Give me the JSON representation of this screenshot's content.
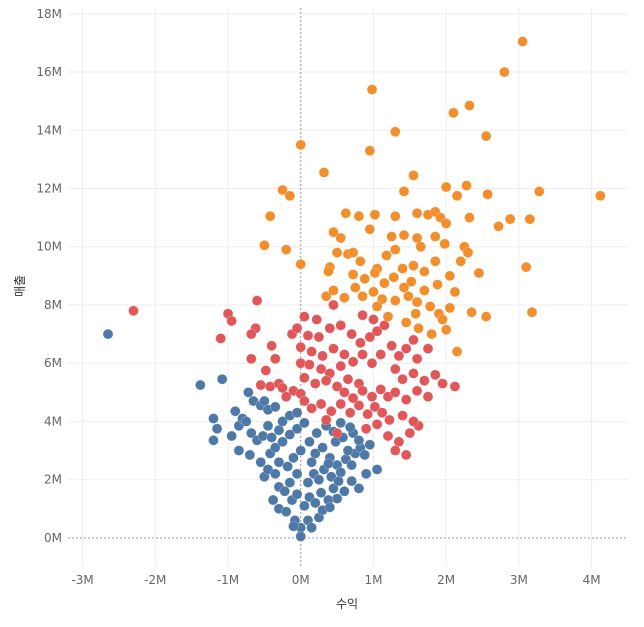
{
  "chart_data": {
    "type": "scatter",
    "title": "",
    "xlabel": "수익",
    "ylabel": "매출",
    "xlim": [
      -3.2,
      4.5
    ],
    "ylim": [
      -1,
      18.2
    ],
    "x_ticks": [
      -3,
      -2,
      -1,
      0,
      1,
      2,
      3,
      4
    ],
    "x_tick_labels": [
      "-3M",
      "-2M",
      "-1M",
      "0M",
      "1M",
      "2M",
      "3M",
      "4M"
    ],
    "y_ticks": [
      0,
      2,
      4,
      6,
      8,
      10,
      12,
      14,
      16,
      18
    ],
    "y_tick_labels": [
      "0M",
      "2M",
      "4M",
      "6M",
      "8M",
      "10M",
      "12M",
      "14M",
      "16M",
      "18M"
    ],
    "units": "millions",
    "grid": true,
    "zero_lines": true,
    "legend": "none",
    "series": [
      {
        "name": "blue",
        "color": "#4e79a7",
        "points": [
          [
            -2.65,
            7.0
          ],
          [
            -1.38,
            5.25
          ],
          [
            -1.08,
            5.45
          ],
          [
            -1.2,
            4.1
          ],
          [
            -1.15,
            3.75
          ],
          [
            -1.2,
            3.35
          ],
          [
            -0.9,
            4.35
          ],
          [
            -0.95,
            3.5
          ],
          [
            -0.85,
            3.85
          ],
          [
            -0.8,
            4.1
          ],
          [
            -0.72,
            5.0
          ],
          [
            -0.75,
            4.0
          ],
          [
            -0.65,
            4.7
          ],
          [
            -0.55,
            4.55
          ],
          [
            -0.5,
            4.7
          ],
          [
            -0.45,
            4.4
          ],
          [
            -0.35,
            4.5
          ],
          [
            -0.68,
            3.6
          ],
          [
            -0.6,
            3.35
          ],
          [
            -0.52,
            3.5
          ],
          [
            -0.45,
            3.85
          ],
          [
            -0.4,
            3.45
          ],
          [
            -0.3,
            3.7
          ],
          [
            -0.25,
            4.0
          ],
          [
            -0.15,
            4.2
          ],
          [
            -0.05,
            4.3
          ],
          [
            -0.85,
            3.0
          ],
          [
            -0.7,
            2.85
          ],
          [
            -0.55,
            2.6
          ],
          [
            -0.42,
            2.9
          ],
          [
            -0.35,
            3.1
          ],
          [
            -0.25,
            3.3
          ],
          [
            -0.15,
            3.55
          ],
          [
            -0.05,
            3.75
          ],
          [
            0.05,
            3.95
          ],
          [
            -0.5,
            2.1
          ],
          [
            -0.45,
            2.35
          ],
          [
            -0.35,
            2.2
          ],
          [
            -0.3,
            2.6
          ],
          [
            -0.18,
            2.45
          ],
          [
            -0.1,
            2.75
          ],
          [
            0.0,
            3.0
          ],
          [
            -0.38,
            1.3
          ],
          [
            -0.3,
            1.75
          ],
          [
            -0.22,
            1.6
          ],
          [
            -0.15,
            1.9
          ],
          [
            -0.05,
            2.2
          ],
          [
            -0.3,
            1.0
          ],
          [
            -0.2,
            0.9
          ],
          [
            -0.12,
            1.3
          ],
          [
            -0.05,
            1.5
          ],
          [
            -0.08,
            0.6
          ],
          [
            0.0,
            0.35
          ],
          [
            0.0,
            0.05
          ],
          [
            -0.1,
            0.4
          ],
          [
            0.1,
            0.6
          ],
          [
            0.15,
            0.35
          ],
          [
            0.25,
            0.7
          ],
          [
            0.3,
            0.95
          ],
          [
            0.05,
            1.1
          ],
          [
            0.12,
            1.4
          ],
          [
            0.2,
            1.2
          ],
          [
            0.28,
            1.55
          ],
          [
            0.38,
            1.3
          ],
          [
            0.45,
            1.7
          ],
          [
            0.1,
            1.9
          ],
          [
            0.18,
            2.2
          ],
          [
            0.25,
            2.0
          ],
          [
            0.32,
            2.35
          ],
          [
            0.42,
            2.1
          ],
          [
            0.5,
            2.5
          ],
          [
            0.55,
            2.25
          ],
          [
            0.62,
            2.7
          ],
          [
            0.7,
            2.5
          ],
          [
            0.75,
            2.9
          ],
          [
            0.82,
            3.1
          ],
          [
            0.88,
            2.85
          ],
          [
            0.95,
            3.2
          ],
          [
            0.2,
            2.9
          ],
          [
            0.3,
            3.1
          ],
          [
            0.4,
            2.75
          ],
          [
            0.48,
            3.3
          ],
          [
            0.58,
            3.45
          ],
          [
            0.65,
            3.0
          ],
          [
            0.72,
            3.6
          ],
          [
            0.8,
            3.35
          ],
          [
            0.12,
            3.3
          ],
          [
            0.22,
            3.6
          ],
          [
            0.35,
            3.85
          ],
          [
            0.45,
            3.65
          ],
          [
            0.55,
            3.95
          ],
          [
            0.68,
            3.8
          ],
          [
            0.15,
            2.6
          ],
          [
            0.38,
            2.55
          ],
          [
            0.52,
            1.95
          ],
          [
            0.6,
            1.6
          ],
          [
            0.7,
            1.95
          ],
          [
            0.8,
            1.7
          ],
          [
            0.9,
            2.2
          ],
          [
            1.05,
            2.35
          ],
          [
            0.4,
            1.05
          ],
          [
            0.5,
            1.35
          ]
        ]
      },
      {
        "name": "red",
        "color": "#e15759",
        "points": [
          [
            -2.3,
            7.8
          ],
          [
            -1.0,
            7.7
          ],
          [
            -0.95,
            7.45
          ],
          [
            -1.1,
            6.85
          ],
          [
            -0.6,
            8.15
          ],
          [
            -0.62,
            7.2
          ],
          [
            -0.68,
            7.0
          ],
          [
            -0.4,
            6.6
          ],
          [
            -0.68,
            6.15
          ],
          [
            -0.35,
            6.15
          ],
          [
            -0.48,
            5.75
          ],
          [
            -0.55,
            5.25
          ],
          [
            -0.42,
            5.2
          ],
          [
            -0.3,
            5.3
          ],
          [
            -0.25,
            5.15
          ],
          [
            -0.1,
            5.05
          ],
          [
            -0.2,
            4.85
          ],
          [
            0.0,
            4.95
          ],
          [
            0.05,
            7.6
          ],
          [
            0.22,
            7.5
          ],
          [
            -0.12,
            7.0
          ],
          [
            -0.05,
            7.2
          ],
          [
            0.1,
            6.95
          ],
          [
            0.25,
            6.9
          ],
          [
            0.4,
            7.2
          ],
          [
            0.0,
            6.55
          ],
          [
            0.15,
            6.4
          ],
          [
            0.3,
            6.25
          ],
          [
            0.45,
            6.5
          ],
          [
            0.0,
            6.0
          ],
          [
            0.12,
            5.95
          ],
          [
            0.28,
            5.8
          ],
          [
            0.4,
            5.65
          ],
          [
            0.55,
            5.9
          ],
          [
            0.05,
            5.5
          ],
          [
            0.2,
            5.3
          ],
          [
            0.35,
            5.4
          ],
          [
            0.5,
            5.2
          ],
          [
            0.65,
            5.45
          ],
          [
            0.8,
            5.3
          ],
          [
            0.05,
            4.7
          ],
          [
            0.15,
            4.45
          ],
          [
            0.28,
            4.6
          ],
          [
            0.42,
            4.35
          ],
          [
            0.55,
            4.6
          ],
          [
            0.68,
            4.3
          ],
          [
            0.8,
            4.55
          ],
          [
            0.92,
            4.25
          ],
          [
            1.02,
            4.5
          ],
          [
            1.12,
            4.3
          ],
          [
            0.55,
            7.3
          ],
          [
            0.7,
            7.0
          ],
          [
            0.82,
            6.7
          ],
          [
            0.95,
            6.9
          ],
          [
            1.05,
            7.1
          ],
          [
            0.6,
            6.3
          ],
          [
            0.72,
            6.05
          ],
          [
            0.85,
            6.3
          ],
          [
            0.98,
            6.0
          ],
          [
            1.1,
            6.3
          ],
          [
            0.6,
            5.0
          ],
          [
            0.72,
            4.8
          ],
          [
            0.85,
            5.05
          ],
          [
            0.98,
            4.85
          ],
          [
            1.1,
            5.1
          ],
          [
            1.2,
            4.85
          ],
          [
            1.25,
            6.6
          ],
          [
            1.35,
            6.25
          ],
          [
            1.45,
            6.5
          ],
          [
            1.55,
            6.8
          ],
          [
            1.6,
            6.15
          ],
          [
            1.75,
            6.5
          ],
          [
            1.3,
            5.8
          ],
          [
            1.4,
            5.45
          ],
          [
            1.55,
            5.65
          ],
          [
            1.7,
            5.4
          ],
          [
            1.85,
            5.6
          ],
          [
            1.95,
            5.3
          ],
          [
            2.12,
            5.2
          ],
          [
            1.3,
            5.0
          ],
          [
            1.45,
            4.75
          ],
          [
            1.6,
            5.05
          ],
          [
            1.75,
            4.85
          ],
          [
            0.45,
            8.0
          ],
          [
            0.85,
            7.65
          ],
          [
            1.0,
            7.5
          ],
          [
            1.15,
            7.3
          ],
          [
            1.2,
            3.5
          ],
          [
            1.35,
            3.3
          ],
          [
            1.5,
            3.6
          ],
          [
            1.62,
            3.85
          ],
          [
            1.3,
            3.0
          ],
          [
            1.45,
            2.85
          ],
          [
            1.05,
            3.9
          ],
          [
            0.9,
            3.75
          ],
          [
            1.22,
            4.05
          ],
          [
            1.4,
            4.2
          ],
          [
            1.55,
            4.0
          ],
          [
            0.5,
            3.6
          ],
          [
            0.35,
            4.05
          ]
        ]
      },
      {
        "name": "orange",
        "color": "#f28e2b",
        "points": [
          [
            3.05,
            17.05
          ],
          [
            2.8,
            16.0
          ],
          [
            0.98,
            15.4
          ],
          [
            2.32,
            14.85
          ],
          [
            2.1,
            14.6
          ],
          [
            2.55,
            13.8
          ],
          [
            1.3,
            13.95
          ],
          [
            0.0,
            13.5
          ],
          [
            0.95,
            13.3
          ],
          [
            0.32,
            12.55
          ],
          [
            1.55,
            12.45
          ],
          [
            -0.25,
            11.95
          ],
          [
            -0.15,
            11.75
          ],
          [
            2.28,
            12.1
          ],
          [
            2.0,
            12.05
          ],
          [
            1.42,
            11.9
          ],
          [
            2.15,
            11.75
          ],
          [
            2.57,
            11.8
          ],
          [
            3.28,
            11.9
          ],
          [
            4.12,
            11.75
          ],
          [
            -0.42,
            11.05
          ],
          [
            0.62,
            11.15
          ],
          [
            0.8,
            11.05
          ],
          [
            1.02,
            11.1
          ],
          [
            1.3,
            11.05
          ],
          [
            1.6,
            11.15
          ],
          [
            1.75,
            11.1
          ],
          [
            1.85,
            11.2
          ],
          [
            1.92,
            11.0
          ],
          [
            2.0,
            10.8
          ],
          [
            2.32,
            11.0
          ],
          [
            2.72,
            10.7
          ],
          [
            2.88,
            10.95
          ],
          [
            3.15,
            10.95
          ],
          [
            -0.5,
            10.05
          ],
          [
            -0.2,
            9.9
          ],
          [
            0.45,
            10.5
          ],
          [
            0.55,
            10.3
          ],
          [
            0.95,
            10.6
          ],
          [
            1.25,
            10.35
          ],
          [
            1.42,
            10.4
          ],
          [
            1.6,
            10.3
          ],
          [
            1.65,
            10.0
          ],
          [
            1.85,
            10.35
          ],
          [
            1.98,
            10.1
          ],
          [
            2.25,
            10.0
          ],
          [
            2.3,
            9.8
          ],
          [
            0.0,
            9.4
          ],
          [
            0.4,
            9.3
          ],
          [
            0.5,
            9.8
          ],
          [
            0.65,
            9.75
          ],
          [
            0.72,
            9.8
          ],
          [
            0.82,
            9.5
          ],
          [
            1.05,
            9.25
          ],
          [
            1.18,
            9.7
          ],
          [
            1.3,
            9.9
          ],
          [
            1.4,
            9.25
          ],
          [
            1.55,
            9.35
          ],
          [
            1.7,
            9.15
          ],
          [
            1.85,
            9.5
          ],
          [
            2.05,
            9.0
          ],
          [
            2.2,
            9.5
          ],
          [
            2.45,
            9.1
          ],
          [
            3.1,
            9.3
          ],
          [
            0.38,
            9.15
          ],
          [
            0.72,
            9.05
          ],
          [
            0.88,
            8.9
          ],
          [
            1.02,
            9.1
          ],
          [
            1.15,
            8.75
          ],
          [
            1.28,
            8.95
          ],
          [
            1.42,
            8.6
          ],
          [
            1.52,
            8.8
          ],
          [
            1.7,
            8.5
          ],
          [
            1.88,
            8.7
          ],
          [
            2.12,
            8.45
          ],
          [
            0.35,
            8.3
          ],
          [
            0.45,
            8.5
          ],
          [
            0.6,
            8.25
          ],
          [
            0.75,
            8.6
          ],
          [
            0.85,
            8.3
          ],
          [
            1.0,
            8.45
          ],
          [
            1.12,
            8.2
          ],
          [
            1.3,
            8.15
          ],
          [
            1.48,
            8.3
          ],
          [
            1.6,
            8.1
          ],
          [
            1.78,
            7.95
          ],
          [
            1.9,
            7.7
          ],
          [
            2.05,
            7.9
          ],
          [
            2.35,
            7.75
          ],
          [
            2.55,
            7.6
          ],
          [
            3.18,
            7.75
          ],
          [
            1.05,
            7.95
          ],
          [
            1.2,
            7.6
          ],
          [
            1.45,
            7.4
          ],
          [
            1.62,
            7.2
          ],
          [
            1.8,
            7.0
          ],
          [
            2.0,
            7.15
          ],
          [
            1.95,
            7.5
          ],
          [
            2.15,
            6.4
          ],
          [
            1.58,
            7.7
          ]
        ]
      }
    ]
  }
}
